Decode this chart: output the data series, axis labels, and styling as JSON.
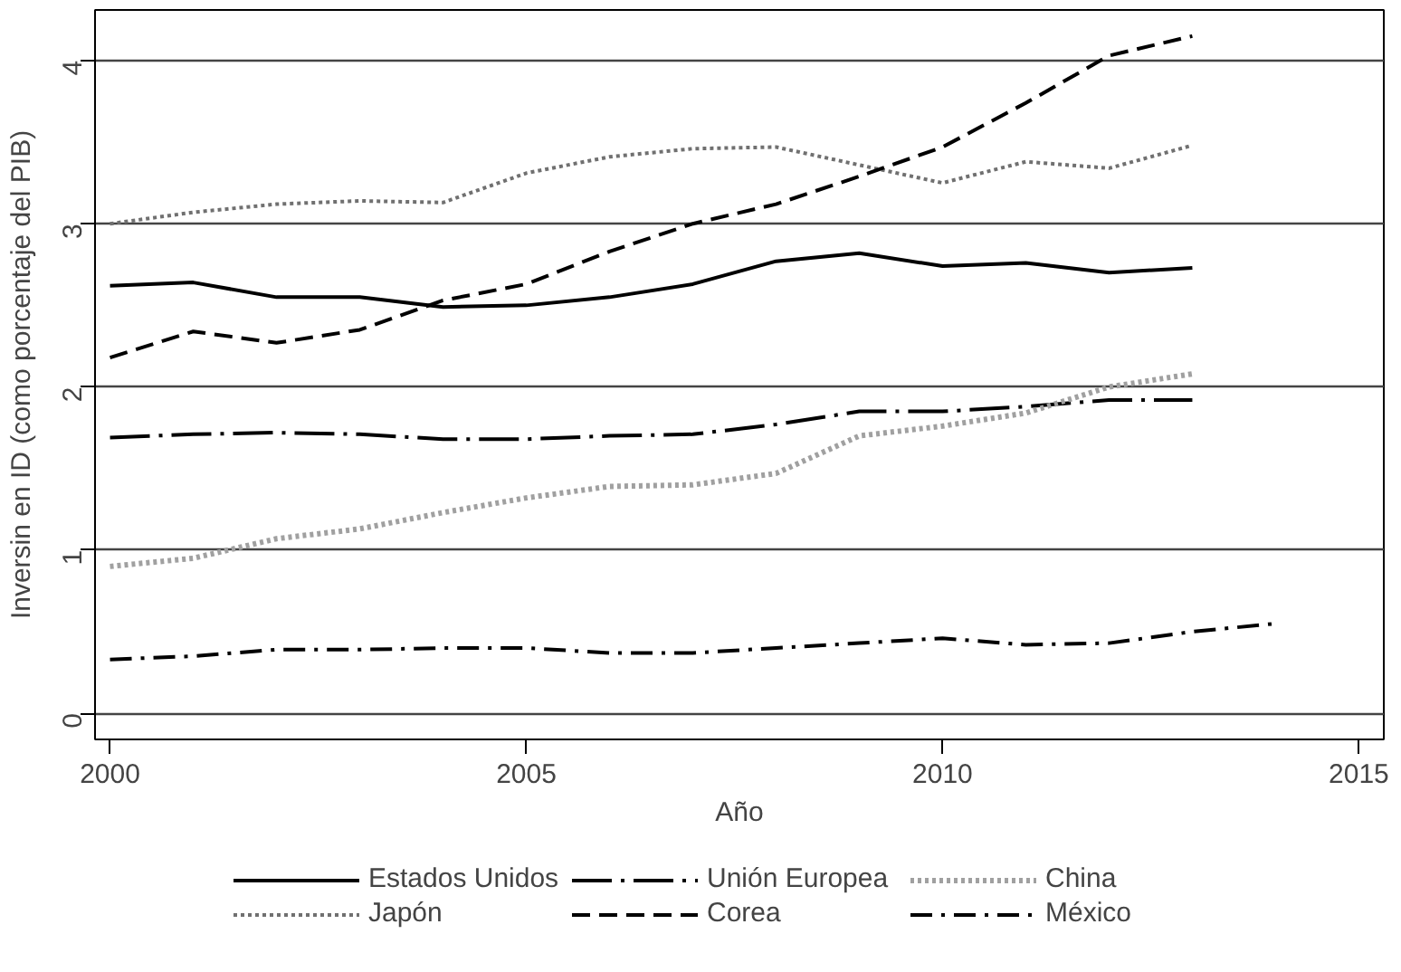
{
  "chart_data": {
    "type": "line",
    "xlabel": "Año",
    "ylabel": "Inversin en ID (como porcentaje del PIB)",
    "xlim": [
      1999.82,
      2015.3
    ],
    "ylim": [
      -0.16,
      4.31
    ],
    "xticks": [
      2000,
      2005,
      2010,
      2015
    ],
    "yticks": [
      0,
      1,
      2,
      3,
      4
    ],
    "grid": "y",
    "legend": "bottom",
    "series": [
      {
        "name": "Estados Unidos",
        "color": "#000000",
        "line_style": "solid",
        "x": [
          2000,
          2001,
          2002,
          2003,
          2004,
          2005,
          2006,
          2007,
          2008,
          2009,
          2010,
          2011,
          2012,
          2013
        ],
        "values": [
          2.62,
          2.64,
          2.55,
          2.55,
          2.49,
          2.5,
          2.55,
          2.63,
          2.77,
          2.82,
          2.74,
          2.76,
          2.7,
          2.73
        ]
      },
      {
        "name": "Unión Europea",
        "color": "#000000",
        "line_style": "longdashdot",
        "x": [
          2000,
          2001,
          2002,
          2003,
          2004,
          2005,
          2006,
          2007,
          2008,
          2009,
          2010,
          2011,
          2012,
          2013
        ],
        "values": [
          1.69,
          1.71,
          1.72,
          1.71,
          1.68,
          1.68,
          1.7,
          1.71,
          1.77,
          1.85,
          1.85,
          1.88,
          1.92,
          1.92
        ]
      },
      {
        "name": "China",
        "color": "#a0a0a0",
        "line_style": "dotted",
        "x": [
          2000,
          2001,
          2002,
          2003,
          2004,
          2005,
          2006,
          2007,
          2008,
          2009,
          2010,
          2011,
          2012,
          2013
        ],
        "values": [
          0.9,
          0.95,
          1.07,
          1.13,
          1.23,
          1.32,
          1.39,
          1.4,
          1.47,
          1.7,
          1.76,
          1.84,
          2.0,
          2.08
        ]
      },
      {
        "name": "Japón",
        "color": "#707070",
        "line_style": "dotted",
        "x": [
          2000,
          2001,
          2002,
          2003,
          2004,
          2005,
          2006,
          2007,
          2008,
          2009,
          2010,
          2011,
          2012,
          2013
        ],
        "values": [
          3.0,
          3.07,
          3.12,
          3.14,
          3.13,
          3.31,
          3.41,
          3.46,
          3.47,
          3.36,
          3.25,
          3.38,
          3.34,
          3.48
        ]
      },
      {
        "name": "Corea",
        "color": "#000000",
        "line_style": "dashed",
        "x": [
          2000,
          2001,
          2002,
          2003,
          2004,
          2005,
          2006,
          2007,
          2008,
          2009,
          2010,
          2011,
          2012,
          2013
        ],
        "values": [
          2.18,
          2.34,
          2.27,
          2.35,
          2.53,
          2.63,
          2.83,
          3.0,
          3.12,
          3.29,
          3.47,
          3.74,
          4.03,
          4.15
        ]
      },
      {
        "name": "México",
        "color": "#000000",
        "line_style": "dashdot",
        "x": [
          2000,
          2001,
          2002,
          2003,
          2004,
          2005,
          2006,
          2007,
          2008,
          2009,
          2010,
          2011,
          2012,
          2013,
          2014
        ],
        "values": [
          0.33,
          0.35,
          0.39,
          0.39,
          0.4,
          0.4,
          0.37,
          0.37,
          0.4,
          0.43,
          0.46,
          0.42,
          0.43,
          0.5,
          0.55
        ]
      }
    ]
  }
}
